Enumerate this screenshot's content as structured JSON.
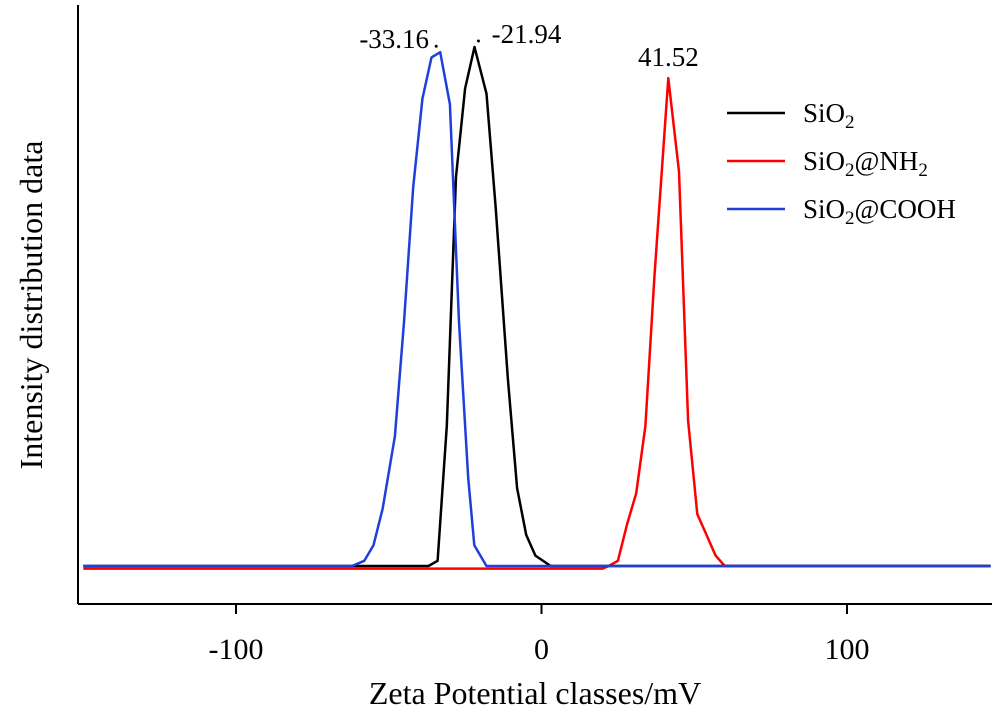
{
  "chart_data": {
    "type": "line",
    "title": "",
    "xlabel": "Zeta Potential classes/mV",
    "ylabel": "Intensity distribution data",
    "xlim": [
      -150,
      147
    ],
    "ylim": [
      -8,
      105
    ],
    "xticks": [
      -100,
      0,
      100
    ],
    "xtick_labels": [
      "-100",
      "0",
      "100"
    ],
    "yticks_shown": false,
    "legend_position": "top-right",
    "series": [
      {
        "name": "SiO₂",
        "color": "#000000",
        "points": [
          [
            -150,
            0
          ],
          [
            -37,
            0
          ],
          [
            -34,
            1
          ],
          [
            -31,
            27
          ],
          [
            -28,
            75
          ],
          [
            -25,
            92
          ],
          [
            -21.94,
            100
          ],
          [
            -18,
            91
          ],
          [
            -15,
            69
          ],
          [
            -11,
            36
          ],
          [
            -8,
            15
          ],
          [
            -5,
            6
          ],
          [
            -2,
            2
          ],
          [
            3,
            0
          ],
          [
            147,
            0
          ]
        ]
      },
      {
        "name": "SiO₂@NH₂",
        "color": "#ff0000",
        "points": [
          [
            -150,
            -0.5
          ],
          [
            20,
            -0.5
          ],
          [
            22,
            0
          ],
          [
            25,
            1
          ],
          [
            28,
            8
          ],
          [
            31,
            14
          ],
          [
            34,
            27
          ],
          [
            37,
            56
          ],
          [
            41.52,
            94
          ],
          [
            45,
            76
          ],
          [
            48,
            28
          ],
          [
            51,
            10
          ],
          [
            54,
            6
          ],
          [
            57,
            2
          ],
          [
            60,
            0
          ],
          [
            147,
            0
          ]
        ]
      },
      {
        "name": "SiO₂@COOH",
        "color": "#1f3fdd",
        "points": [
          [
            -150,
            0
          ],
          [
            -62,
            0
          ],
          [
            -58,
            1
          ],
          [
            -55,
            4
          ],
          [
            -52,
            11
          ],
          [
            -48,
            25
          ],
          [
            -45,
            47
          ],
          [
            -42,
            73
          ],
          [
            -39,
            90
          ],
          [
            -36,
            98
          ],
          [
            -33.16,
            99
          ],
          [
            -30,
            89
          ],
          [
            -27,
            47
          ],
          [
            -24,
            17
          ],
          [
            -22,
            4
          ],
          [
            -18,
            0
          ],
          [
            147,
            0
          ]
        ]
      }
    ],
    "annotations": [
      {
        "text": "-33.16",
        "x": -33.16,
        "y": 99
      },
      {
        "text": "-21.94",
        "x": -21.94,
        "y": 100
      },
      {
        "text": "41.52",
        "x": 41.52,
        "y": 94
      }
    ],
    "legend": [
      {
        "label": "SiO",
        "sub": "2",
        "rest": "",
        "sub2": "",
        "color": "#000000"
      },
      {
        "label": "SiO",
        "sub": "2",
        "rest": "@NH",
        "sub2": "2",
        "color": "#ff0000"
      },
      {
        "label": "SiO",
        "sub": "2",
        "rest": "@COOH",
        "sub2": "",
        "color": "#1f3fdd"
      }
    ]
  }
}
